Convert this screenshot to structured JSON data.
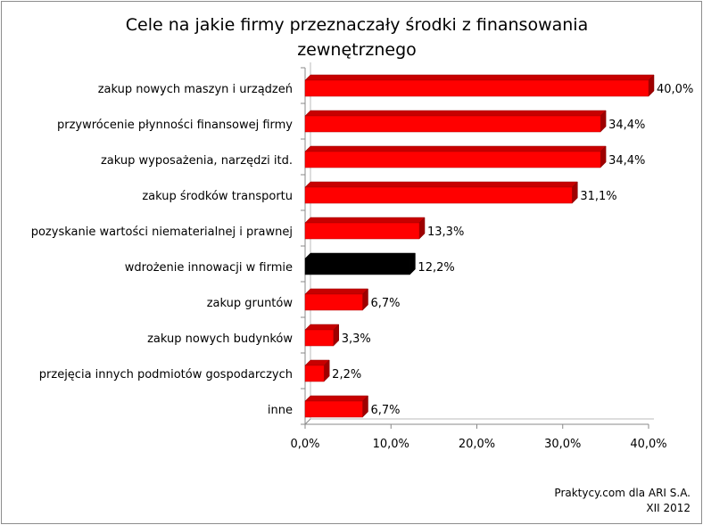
{
  "chart_data": {
    "type": "bar",
    "orientation": "horizontal",
    "title": "Cele  na jakie firmy przeznaczały środki z finansowania zewnętrznego",
    "categories": [
      "zakup nowych maszyn i urządzeń",
      "przywrócenie płynności finansowej firmy",
      "zakup wyposażenia, narzędzi itd.",
      "zakup środków transportu",
      "pozyskanie wartości niematerialnej i prawnej",
      "wdrożenie innowacji w firmie",
      "zakup gruntów",
      "zakup nowych budynków",
      "przejęcia innych podmiotów gospodarczych",
      "inne"
    ],
    "values": [
      40.0,
      34.4,
      34.4,
      31.1,
      13.3,
      12.2,
      6.7,
      3.3,
      2.2,
      6.7
    ],
    "value_labels": [
      "40,0%",
      "34,4%",
      "34,4%",
      "31,1%",
      "13,3%",
      "12,2%",
      "6,7%",
      "3,3%",
      "2,2%",
      "6,7%"
    ],
    "bar_colors": [
      "#ff0000",
      "#ff0000",
      "#ff0000",
      "#ff0000",
      "#ff0000",
      "#000000",
      "#ff0000",
      "#ff0000",
      "#ff0000",
      "#ff0000"
    ],
    "xlim": [
      0,
      40
    ],
    "xticks": [
      0,
      10,
      20,
      30,
      40
    ],
    "xtick_labels": [
      "0,0%",
      "10,0%",
      "20,0%",
      "30,0%",
      "40,0%"
    ],
    "grid": false,
    "style": "3d"
  },
  "credit": {
    "line1": "Praktycy.com dla ARI S.A.",
    "line2": "XII 2012"
  }
}
